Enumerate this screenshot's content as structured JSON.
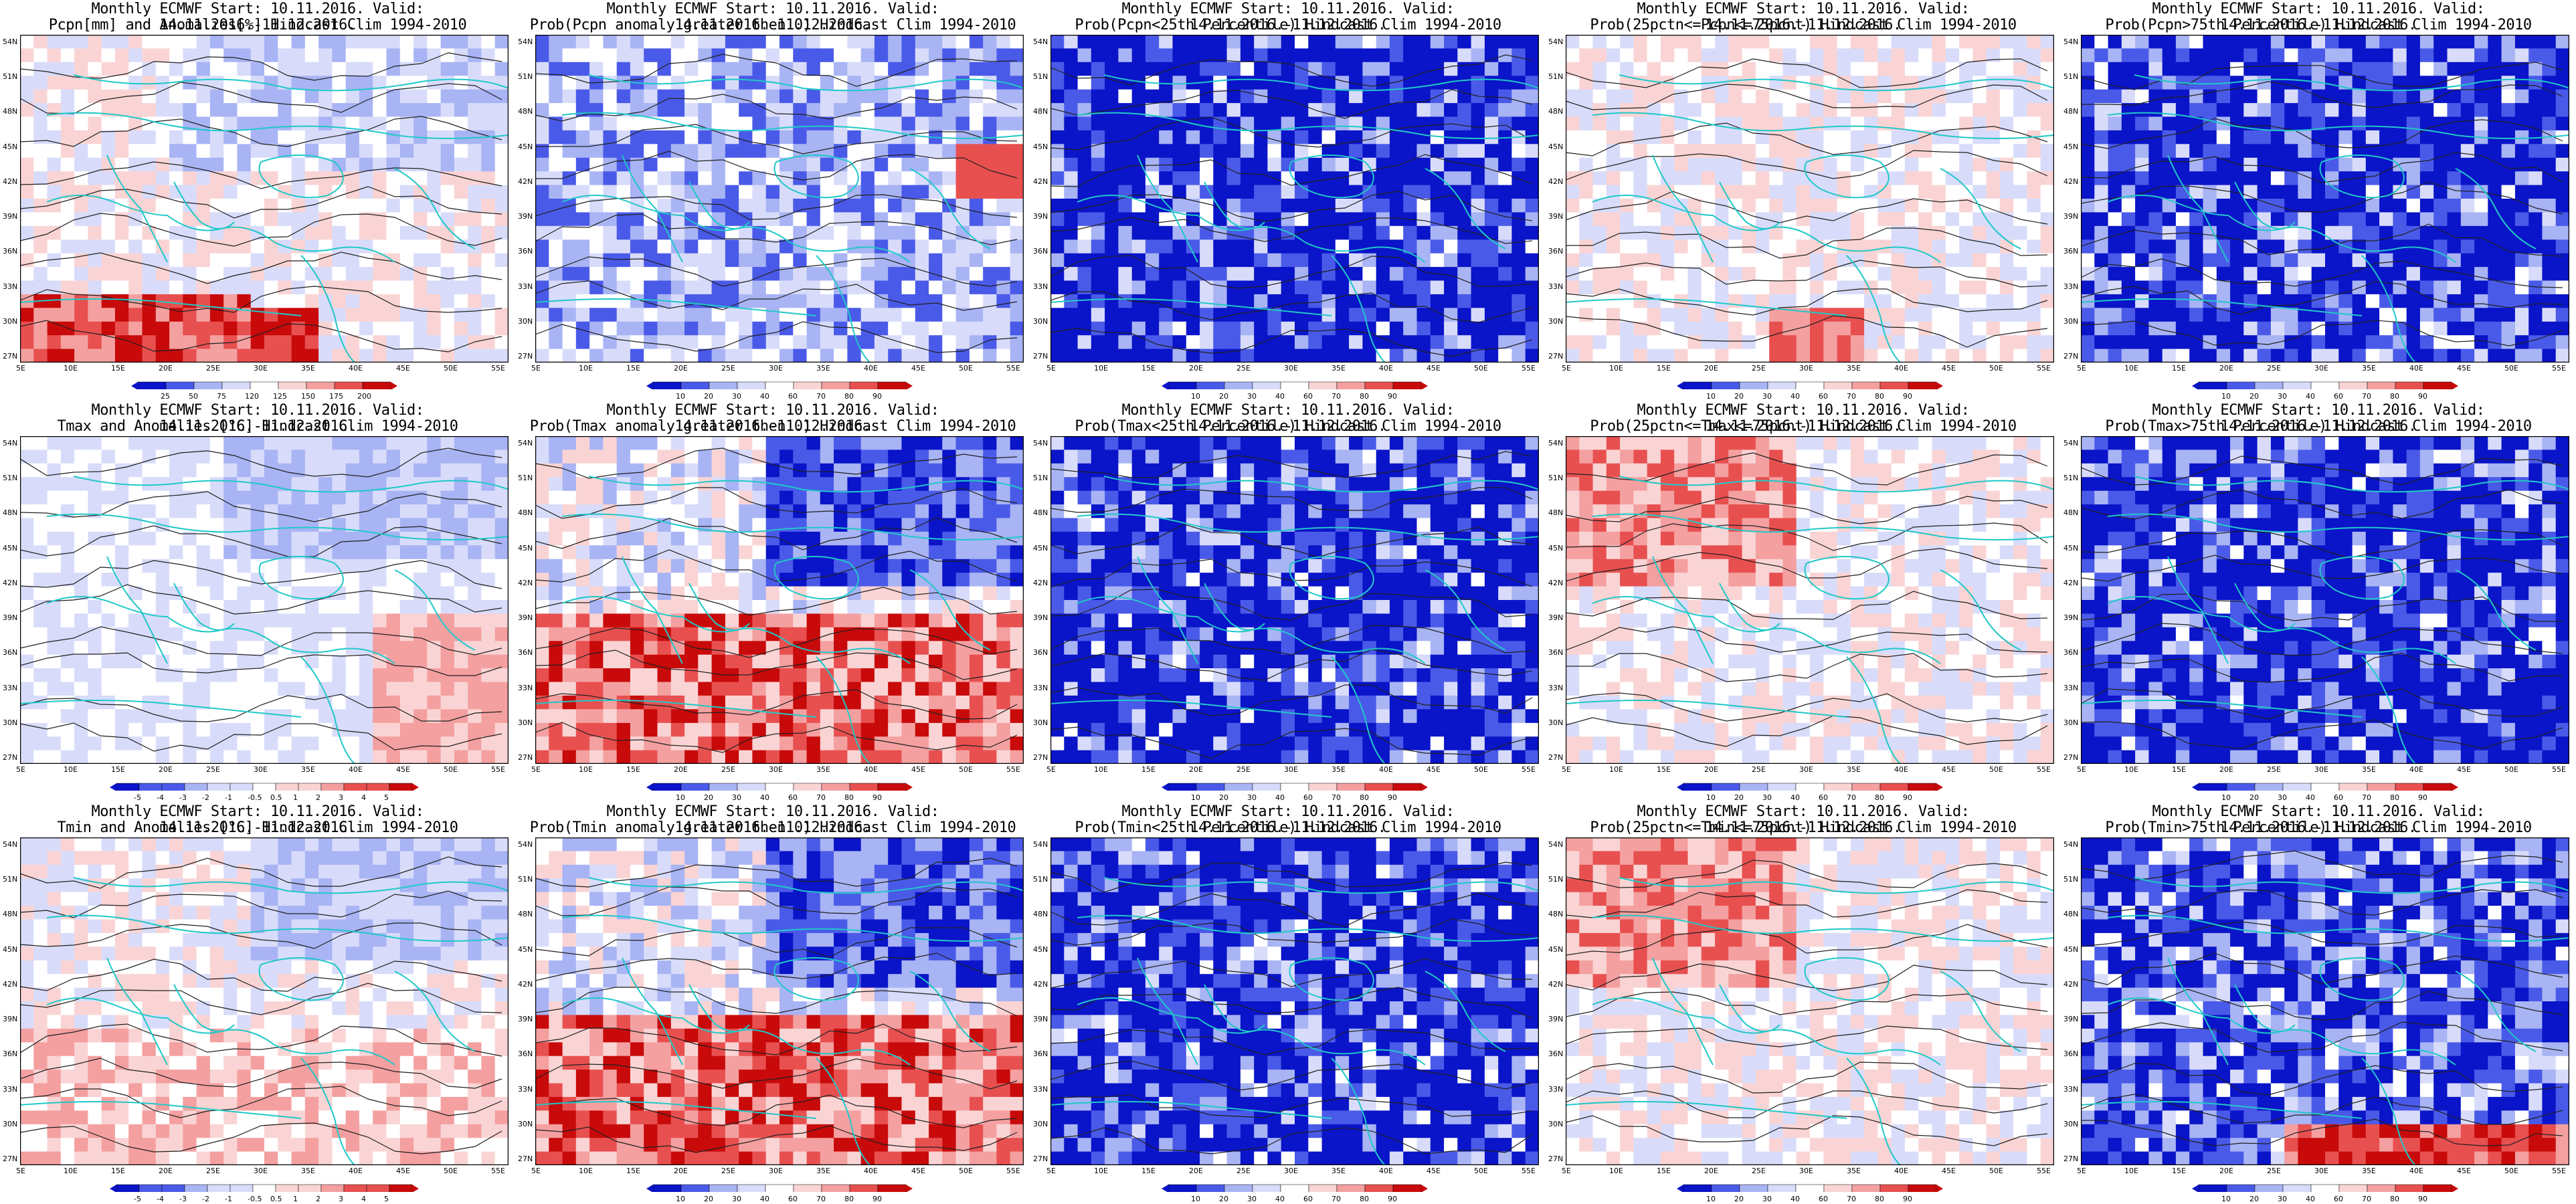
{
  "panels": [
    {
      "id": "pcpn-anom",
      "row": 0,
      "col": 0,
      "title_line1": "Monthly ECMWF Start: 10.11.2016. Valid: 14.11.2016.-11.12.2016.",
      "title_line2": "Pcpn[mm] and Anomalies[%] Hindcast Clim 1994-2010",
      "bias": "anom",
      "colorbar_ticks": [
        "25",
        "50",
        "75",
        "120",
        "125",
        "150",
        "175",
        "200"
      ],
      "colorbar_style": "anom"
    },
    {
      "id": "pcpn-prob-pos",
      "row": 0,
      "col": 1,
      "title_line1": "Monthly ECMWF Start: 10.11.2016. Valid: 14.11.2016.-11.12.2016.",
      "title_line2": "Prob(Pcpn anomaly greater then 0) Hindcast Clim 1994-2010",
      "bias": "blue",
      "colorbar_ticks": [
        "10",
        "20",
        "30",
        "40",
        "60",
        "70",
        "80",
        "90"
      ],
      "colorbar_style": "prob"
    },
    {
      "id": "pcpn-prob-below",
      "row": 0,
      "col": 2,
      "title_line1": "Monthly ECMWF Start: 10.11.2016. Valid: 14.11.2016.-11.12.2016.",
      "title_line2": "Prob(Pcpn<25th Percentile) Hindcast Clim 1994-2010",
      "bias": "deepblue",
      "colorbar_ticks": [
        "10",
        "20",
        "30",
        "40",
        "60",
        "70",
        "80",
        "90"
      ],
      "colorbar_style": "prob"
    },
    {
      "id": "pcpn-prob-normal",
      "row": 0,
      "col": 3,
      "title_line1": "Monthly ECMWF Start: 10.11.2016. Valid: 14.11.2016.-11.12.2016.",
      "title_line2": "Prob(25pctn<=Pcpn<=75pcnt) Hindcast Clim 1994-2010",
      "bias": "mixed",
      "colorbar_ticks": [
        "10",
        "20",
        "30",
        "40",
        "60",
        "70",
        "80",
        "90"
      ],
      "colorbar_style": "prob"
    },
    {
      "id": "pcpn-prob-above",
      "row": 0,
      "col": 4,
      "title_line1": "Monthly ECMWF Start: 10.11.2016. Valid: 14.11.2016.-11.12.2016.",
      "title_line2": "Prob(Pcpn>75th Percentile) Hindcast Clim 1994-2010",
      "bias": "deepblue",
      "colorbar_ticks": [
        "10",
        "20",
        "30",
        "40",
        "60",
        "70",
        "80",
        "90"
      ],
      "colorbar_style": "prob"
    },
    {
      "id": "tmax-anom",
      "row": 1,
      "col": 0,
      "title_line1": "Monthly ECMWF Start: 10.11.2016. Valid: 14.11.2016.-11.12.2016.",
      "title_line2": "Tmax and Anomalies [°C] Hindcast Clim 1994-2010",
      "bias": "lightblue",
      "colorbar_ticks": [
        "-5",
        "-4",
        "-3",
        "-2",
        "-1",
        "-0.5",
        "0.5",
        "1",
        "2",
        "3",
        "4",
        "5"
      ],
      "colorbar_style": "temp"
    },
    {
      "id": "tmax-prob-pos",
      "row": 1,
      "col": 1,
      "title_line1": "Monthly ECMWF Start: 10.11.2016. Valid: 14.11.2016.-11.12.2016.",
      "title_line2": "Prob(Tmax anomaly greater then 0) Hindcast Clim 1994-2010",
      "bias": "redblue",
      "colorbar_ticks": [
        "10",
        "20",
        "30",
        "40",
        "60",
        "70",
        "80",
        "90"
      ],
      "colorbar_style": "prob"
    },
    {
      "id": "tmax-prob-below",
      "row": 1,
      "col": 2,
      "title_line1": "Monthly ECMWF Start: 10.11.2016. Valid: 14.11.2016.-11.12.2016.",
      "title_line2": "Prob(Tmax<25th Percentile) Hindcast Clim 1994-2010",
      "bias": "deepblue",
      "colorbar_ticks": [
        "10",
        "20",
        "30",
        "40",
        "60",
        "70",
        "80",
        "90"
      ],
      "colorbar_style": "prob"
    },
    {
      "id": "tmax-prob-normal",
      "row": 1,
      "col": 3,
      "title_line1": "Monthly ECMWF Start: 10.11.2016. Valid: 14.11.2016.-11.12.2016.",
      "title_line2": "Prob(25pctn<=Tmax<=75pcnt) Hindcast Clim 1994-2010",
      "bias": "mixedred",
      "colorbar_ticks": [
        "10",
        "20",
        "30",
        "40",
        "60",
        "70",
        "80",
        "90"
      ],
      "colorbar_style": "prob"
    },
    {
      "id": "tmax-prob-above",
      "row": 1,
      "col": 4,
      "title_line1": "Monthly ECMWF Start: 10.11.2016. Valid: 14.11.2016.-11.12.2016.",
      "title_line2": "Prob(Tmax>75th Percentile) Hindcast Clim 1994-2010",
      "bias": "deepblue",
      "colorbar_ticks": [
        "10",
        "20",
        "30",
        "40",
        "60",
        "70",
        "80",
        "90"
      ],
      "colorbar_style": "prob"
    },
    {
      "id": "tmin-anom",
      "row": 2,
      "col": 0,
      "title_line1": "Monthly ECMWF Start: 10.11.2016. Valid: 14.11.2016.-11.12.2016.",
      "title_line2": "Tmin and Anomalies [°C] Hindcast Clim 1994-2010",
      "bias": "lightmix",
      "colorbar_ticks": [
        "-5",
        "-4",
        "-3",
        "-2",
        "-1",
        "-0.5",
        "0.5",
        "1",
        "2",
        "3",
        "4",
        "5"
      ],
      "colorbar_style": "temp"
    },
    {
      "id": "tmin-prob-pos",
      "row": 2,
      "col": 1,
      "title_line1": "Monthly ECMWF Start: 10.11.2016. Valid: 14.11.2016.-11.12.2016.",
      "title_line2": "Prob(Tmin anomaly greater then 0) Hindcast Clim 1994-2010",
      "bias": "redblue",
      "colorbar_ticks": [
        "10",
        "20",
        "30",
        "40",
        "60",
        "70",
        "80",
        "90"
      ],
      "colorbar_style": "prob"
    },
    {
      "id": "tmin-prob-below",
      "row": 2,
      "col": 2,
      "title_line1": "Monthly ECMWF Start: 10.11.2016. Valid: 14.11.2016.-11.12.2016.",
      "title_line2": "Prob(Tmin<25th Percentile) Hindcast Clim 1994-2010",
      "bias": "deepblue",
      "colorbar_ticks": [
        "10",
        "20",
        "30",
        "40",
        "60",
        "70",
        "80",
        "90"
      ],
      "colorbar_style": "prob"
    },
    {
      "id": "tmin-prob-normal",
      "row": 2,
      "col": 3,
      "title_line1": "Monthly ECMWF Start: 10.11.2016. Valid: 14.11.2016.-11.12.2016.",
      "title_line2": "Prob(25pctn<=Tmin<=75pcnt) Hindcast Clim 1994-2010",
      "bias": "mixedred",
      "colorbar_ticks": [
        "10",
        "20",
        "30",
        "40",
        "60",
        "70",
        "80",
        "90"
      ],
      "colorbar_style": "prob"
    },
    {
      "id": "tmin-prob-above",
      "row": 2,
      "col": 4,
      "title_line1": "Monthly ECMWF Start: 10.11.2016. Valid: 14.11.2016.-11.12.2016.",
      "title_line2": "Prob(Tmin>75th Percentile) Hindcast Clim 1994-2010",
      "bias": "bluesouthred",
      "colorbar_ticks": [
        "10",
        "20",
        "30",
        "40",
        "60",
        "70",
        "80",
        "90"
      ],
      "colorbar_style": "prob"
    }
  ],
  "lat_ticks": [
    "54N",
    "51N",
    "48N",
    "45N",
    "42N",
    "39N",
    "36N",
    "33N",
    "30N",
    "27N"
  ],
  "lon_ticks": [
    "5E",
    "10E",
    "15E",
    "20E",
    "25E",
    "30E",
    "35E",
    "40E",
    "45E",
    "50E",
    "55E"
  ],
  "colors": {
    "deep_blue": "#0a14c8",
    "mid_blue": "#4a5ae8",
    "light_blue": "#a8b4f4",
    "pale_blue": "#d8dcfa",
    "white": "#ffffff",
    "pale_red": "#fad4d4",
    "light_red": "#f4a0a0",
    "mid_red": "#e85050",
    "deep_red": "#c80a0a",
    "coast": "#20c8c8",
    "contour": "#202020"
  }
}
